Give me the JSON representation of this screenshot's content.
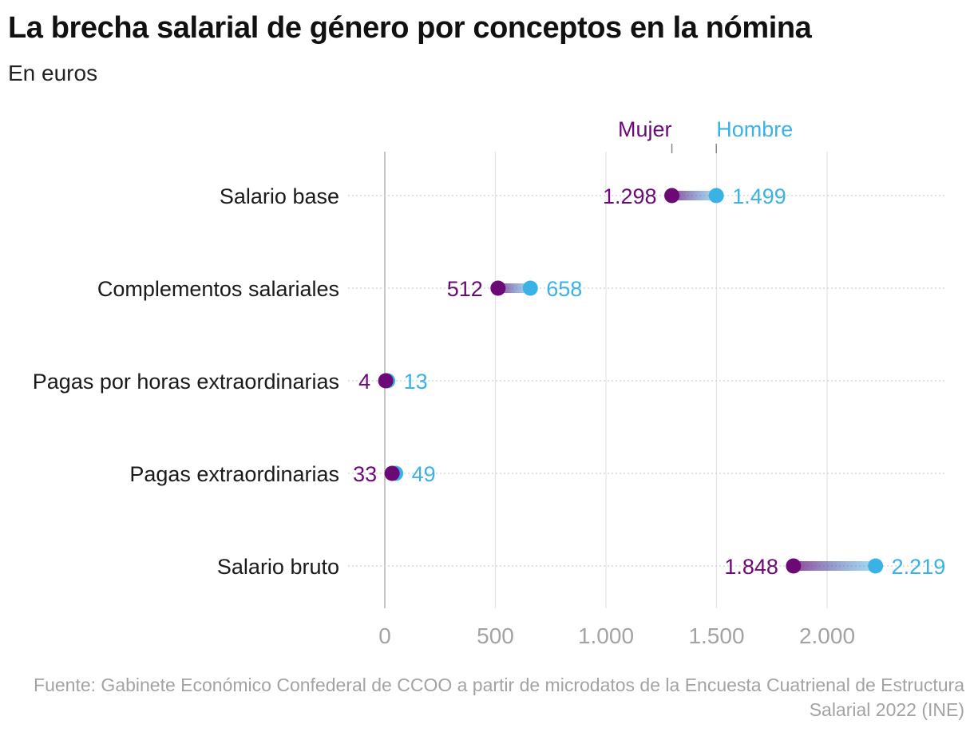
{
  "header": {
    "title": "La brecha salarial de género por conceptos en la nómina",
    "subtitle": "En euros"
  },
  "source": {
    "text": "Fuente: Gabinete Económico Confederal de CCOO a partir de microdatos de la Encuesta Cuatrienal de Estructura Salarial 2022 (INE)"
  },
  "chart_data": {
    "type": "dumbbell",
    "title": "La brecha salarial de género por conceptos en la nómina",
    "subtitle": "En euros",
    "categories": [
      "Salario base",
      "Complementos salariales",
      "Pagas por horas extraordinarias",
      "Pagas extraordinarias",
      "Salario bruto"
    ],
    "series": [
      {
        "name": "Mujer",
        "color": "#6b0a77",
        "values": [
          1298,
          512,
          4,
          33,
          1848
        ],
        "labels": [
          "1.298",
          "512",
          "4",
          "33",
          "1.848"
        ]
      },
      {
        "name": "Hombre",
        "color": "#3bb2e6",
        "values": [
          1499,
          658,
          13,
          49,
          2219
        ],
        "labels": [
          "1.499",
          "658",
          "13",
          "49",
          "2.219"
        ]
      }
    ],
    "xlim": [
      0,
      2550
    ],
    "xticks": [
      0,
      500,
      1000,
      1500,
      2000
    ],
    "xtick_labels": [
      "0",
      "500",
      "1.000",
      "1.500",
      "2.000"
    ],
    "grid": true,
    "legend_placement": "top, above the first row, pointing at its markers"
  }
}
